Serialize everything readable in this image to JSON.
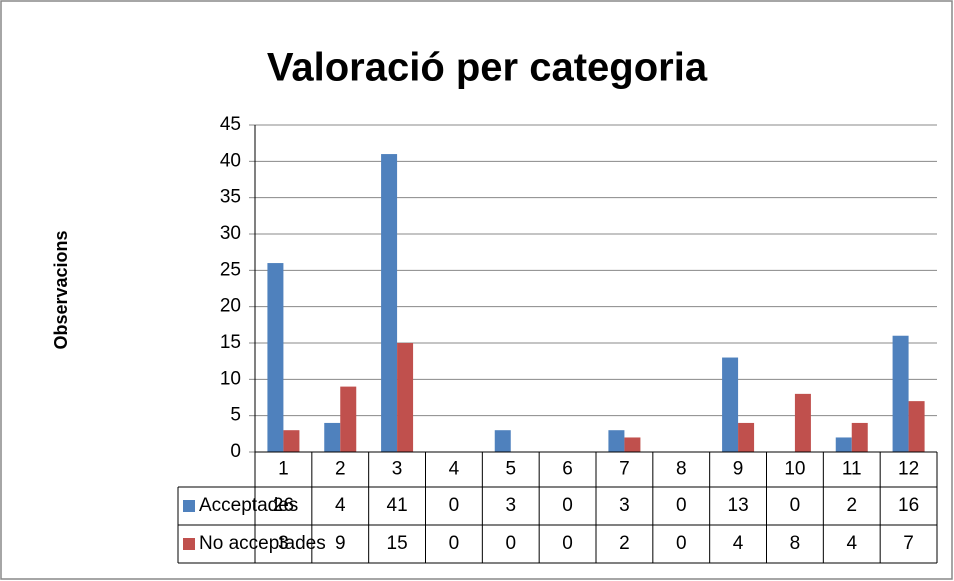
{
  "chart_data": {
    "type": "bar",
    "title": "Valoració per categoria",
    "y_label": "Observacions",
    "categories": [
      "1",
      "2",
      "3",
      "4",
      "5",
      "6",
      "7",
      "8",
      "9",
      "10",
      "11",
      "12"
    ],
    "series": [
      {
        "name": "Acceptades",
        "color": "#4f81bd",
        "values": [
          26,
          4,
          41,
          0,
          3,
          0,
          3,
          0,
          13,
          0,
          2,
          16
        ]
      },
      {
        "name": "No acceptades",
        "color": "#c0504d",
        "values": [
          3,
          9,
          15,
          0,
          0,
          0,
          2,
          0,
          4,
          8,
          4,
          7
        ]
      }
    ],
    "ylim": [
      0,
      45
    ],
    "yticks": [
      0,
      5,
      10,
      15,
      20,
      25,
      30,
      35,
      40,
      45
    ],
    "grid": true
  }
}
